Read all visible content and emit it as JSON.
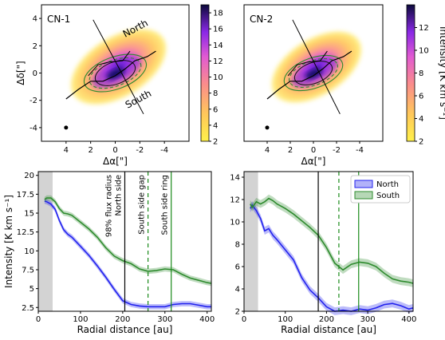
{
  "chart_data": [
    {
      "type": "heatmap",
      "panel_label": "CN-1",
      "xlabel": "Δα[\"]",
      "ylabel": "Δδ[\"]",
      "xlim": [
        6,
        -6
      ],
      "ylim": [
        -5,
        5
      ],
      "xticks": [
        4,
        2,
        0,
        -2,
        -4
      ],
      "yticks": [
        4,
        2,
        0,
        -2,
        -4
      ],
      "annotations": [
        "North",
        "South"
      ],
      "annotation_colors": [
        "#1a1aff",
        "#1a8a1a"
      ],
      "colorbar": {
        "range": [
          2,
          19
        ],
        "ticks": [
          18,
          16,
          14,
          12,
          10,
          8,
          6,
          4,
          2
        ]
      },
      "beam_marker": {
        "x": 4,
        "y": -4
      }
    },
    {
      "type": "heatmap",
      "panel_label": "CN-2",
      "xlabel": "Δα[\"]",
      "ylabel": "",
      "xlim": [
        6,
        -6
      ],
      "ylim": [
        -5,
        5
      ],
      "xticks": [
        4,
        2,
        0,
        -2,
        -4
      ],
      "yticks": [],
      "colorbar": {
        "label": "Intensity [K km s⁻¹]",
        "range": [
          2,
          14
        ],
        "ticks": [
          12,
          10,
          8,
          6,
          4,
          2
        ]
      },
      "beam_marker": {
        "x": 4,
        "y": -4
      }
    },
    {
      "type": "line",
      "xlabel": "Radial distance [au]",
      "ylabel": "Intensity [K km s⁻¹]",
      "xlim": [
        0,
        410
      ],
      "ylim": [
        2.0,
        20.5
      ],
      "xticks": [
        0,
        100,
        200,
        300,
        400
      ],
      "yticks": [
        2.5,
        5.0,
        7.5,
        10.0,
        12.5,
        15.0,
        17.5,
        20.0
      ],
      "shaded_region": [
        0,
        34
      ],
      "vlines": [
        {
          "x": 205,
          "color": "#000000",
          "style": "solid",
          "label": "98% flux radius North side"
        },
        {
          "x": 260,
          "color": "#1a8a1a",
          "style": "dashed",
          "label": "South side gap"
        },
        {
          "x": 315,
          "color": "#1a8a1a",
          "style": "solid",
          "label": "South side ring"
        }
      ],
      "series": [
        {
          "name": "North",
          "color": "#2222ee",
          "x": [
            15,
            20,
            30,
            40,
            50,
            60,
            70,
            80,
            100,
            120,
            140,
            160,
            180,
            200,
            220,
            240,
            260,
            280,
            300,
            320,
            340,
            360,
            380,
            400,
            410
          ],
          "values": [
            16.6,
            16.5,
            16.2,
            15.5,
            14.0,
            12.8,
            12.2,
            11.8,
            10.6,
            9.4,
            8.0,
            6.5,
            4.9,
            3.4,
            2.9,
            2.7,
            2.6,
            2.6,
            2.6,
            2.9,
            3.0,
            3.0,
            2.8,
            2.6,
            2.6
          ]
        },
        {
          "name": "South",
          "color": "#2e8b2e",
          "x": [
            15,
            20,
            30,
            40,
            50,
            60,
            70,
            80,
            100,
            120,
            140,
            160,
            180,
            200,
            220,
            240,
            260,
            280,
            300,
            320,
            340,
            360,
            380,
            400,
            410
          ],
          "values": [
            16.8,
            17.0,
            17.0,
            16.5,
            15.6,
            15.0,
            14.9,
            14.7,
            13.8,
            12.9,
            11.8,
            10.4,
            9.3,
            8.7,
            8.3,
            7.6,
            7.3,
            7.4,
            7.6,
            7.5,
            6.9,
            6.4,
            6.1,
            5.8,
            5.7
          ]
        }
      ]
    },
    {
      "type": "line",
      "xlabel": "Radial distance [au]",
      "ylabel": "",
      "xlim": [
        0,
        410
      ],
      "ylim": [
        2,
        14.5
      ],
      "xticks": [
        0,
        100,
        200,
        300,
        400
      ],
      "yticks": [
        2,
        4,
        6,
        8,
        10,
        12,
        14
      ],
      "shaded_region": [
        0,
        34
      ],
      "vlines": [
        {
          "x": 180,
          "color": "#000000",
          "style": "solid"
        },
        {
          "x": 230,
          "color": "#1a8a1a",
          "style": "dashed"
        },
        {
          "x": 278,
          "color": "#1a8a1a",
          "style": "solid"
        }
      ],
      "legend": {
        "placement": "top-right"
      },
      "series": [
        {
          "name": "North",
          "color": "#2222ee",
          "x": [
            15,
            20,
            30,
            40,
            50,
            60,
            70,
            80,
            100,
            120,
            140,
            160,
            180,
            200,
            220,
            240,
            260,
            280,
            300,
            320,
            340,
            360,
            380,
            400,
            410
          ],
          "values": [
            11.2,
            11.5,
            11.0,
            10.3,
            9.2,
            9.4,
            8.8,
            8.4,
            7.5,
            6.6,
            5.0,
            3.9,
            3.2,
            2.4,
            2.0,
            2.1,
            2.0,
            2.2,
            2.1,
            2.3,
            2.6,
            2.7,
            2.5,
            2.2,
            2.3
          ]
        },
        {
          "name": "South",
          "color": "#2e8b2e",
          "x": [
            15,
            20,
            30,
            40,
            50,
            60,
            70,
            80,
            100,
            120,
            140,
            160,
            180,
            200,
            220,
            240,
            260,
            280,
            300,
            320,
            340,
            360,
            380,
            400,
            410
          ],
          "values": [
            11.6,
            11.3,
            11.8,
            11.6,
            11.8,
            12.1,
            11.9,
            11.6,
            11.2,
            10.7,
            10.1,
            9.5,
            8.8,
            7.7,
            6.3,
            5.7,
            6.2,
            6.4,
            6.3,
            6.0,
            5.4,
            4.9,
            4.7,
            4.6,
            4.5
          ]
        }
      ]
    }
  ]
}
